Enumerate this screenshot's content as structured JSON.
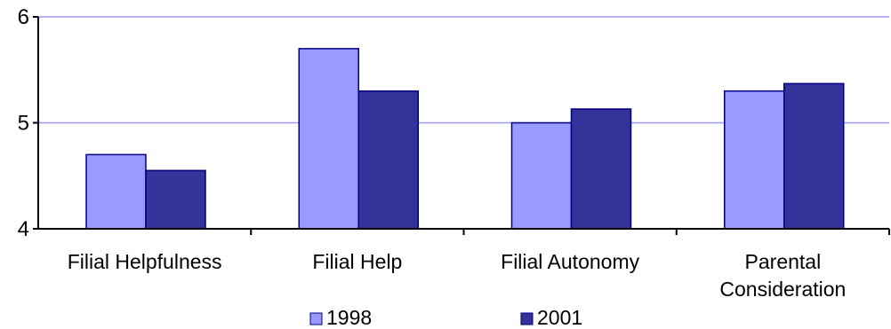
{
  "chart_data": {
    "type": "bar",
    "categories": [
      "Filial Helpfulness",
      "Filial Help",
      "Filial Autonomy",
      "Parental Consideration"
    ],
    "category_lines": [
      [
        "Filial Helpfulness"
      ],
      [
        "Filial Help"
      ],
      [
        "Filial Autonomy"
      ],
      [
        "Parental",
        "Consideration"
      ]
    ],
    "series": [
      {
        "name": "1998",
        "values": [
          4.7,
          5.7,
          5.0,
          5.3
        ],
        "color": "#9999ff",
        "legend_label": "1998"
      },
      {
        "name": "2001",
        "values": [
          4.55,
          5.3,
          5.13,
          5.37
        ],
        "color": "#333399",
        "legend_label": "2001"
      }
    ],
    "ylim": [
      4,
      6
    ],
    "yticks": [
      4,
      5,
      6
    ],
    "ytick_labels": [
      "4",
      "5",
      "6"
    ],
    "grid": true,
    "grid_color": "#9999ff",
    "bar_edge_color": "#000080",
    "legend_position": "bottom",
    "xlabel": "",
    "ylabel": "",
    "title": ""
  }
}
